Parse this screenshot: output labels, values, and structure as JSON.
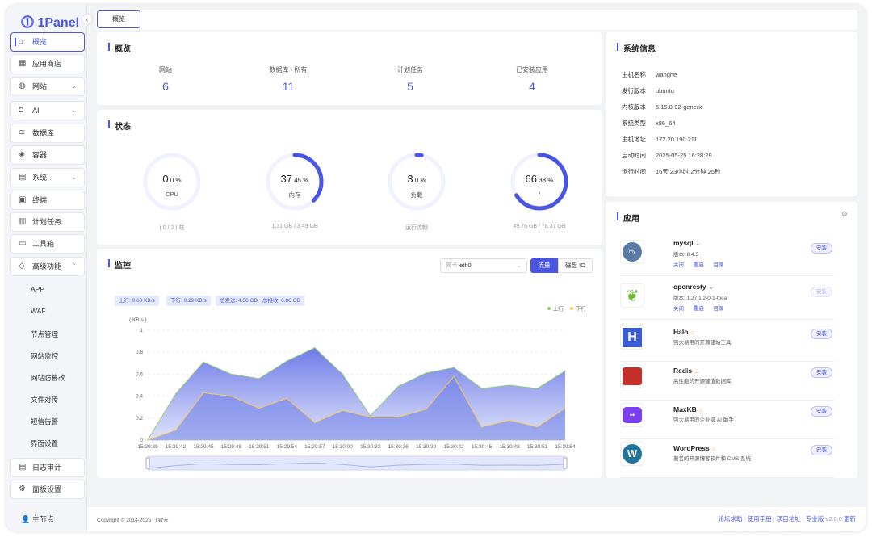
{
  "brand": "1Panel",
  "tabs": [
    {
      "label": "概览"
    }
  ],
  "sidebar": {
    "items": [
      {
        "label": "概览",
        "icon": "home-icon",
        "active": true
      },
      {
        "label": "应用商店",
        "icon": "grid-icon"
      },
      {
        "label": "网站",
        "icon": "globe-icon",
        "chevron": "down"
      },
      {
        "label": "AI",
        "icon": "robot-icon",
        "chevron": "down"
      },
      {
        "label": "数据库",
        "icon": "layers-icon"
      },
      {
        "label": "容器",
        "icon": "container-icon"
      },
      {
        "label": "系统",
        "icon": "server-icon",
        "chevron": "down"
      },
      {
        "label": "终端",
        "icon": "terminal-icon"
      },
      {
        "label": "计划任务",
        "icon": "calendar-icon"
      },
      {
        "label": "工具箱",
        "icon": "toolbox-icon"
      },
      {
        "label": "高级功能",
        "icon": "diamond-icon",
        "chevron": "up"
      }
    ],
    "sub_items": [
      "APP",
      "WAF",
      "节点管理",
      "网站监控",
      "网站防篡改",
      "文件对传",
      "短信告警",
      "界面设置"
    ],
    "bottom_items": [
      {
        "label": "日志审计",
        "icon": "log-icon"
      },
      {
        "label": "面板设置",
        "icon": "gear-icon"
      }
    ],
    "node": {
      "label": "主节点",
      "icon": "user-icon"
    }
  },
  "overview": {
    "title": "概览",
    "stats": [
      {
        "label": "网站",
        "value": "6"
      },
      {
        "label": "数据库 - 所有",
        "value": "11"
      },
      {
        "label": "计划任务",
        "value": "5"
      },
      {
        "label": "已安装应用",
        "value": "4"
      }
    ]
  },
  "status": {
    "title": "状态",
    "gauges": [
      {
        "int": "0",
        "dec": ".0 %",
        "label": "CPU",
        "caption": "( 0 / 2 ) 核",
        "percent": 0
      },
      {
        "int": "37",
        "dec": ".45 %",
        "label": "内存",
        "caption": "1.31 GB / 3.49 GB",
        "percent": 37.45
      },
      {
        "int": "3",
        "dec": ".0 %",
        "label": "负载",
        "caption": "运行流畅",
        "percent": 3
      },
      {
        "int": "66",
        "dec": ".38 %",
        "label": "/",
        "caption": "49.76 GB / 78.37 GB",
        "percent": 66.38
      }
    ]
  },
  "monitor": {
    "title": "监控",
    "nic_label": "网卡",
    "nic_value": "eth0",
    "btn_traffic": "流量",
    "btn_disk": "磁盘 IO",
    "tags": [
      "上行: 0.63 KB/s",
      "下行: 0.29 KB/s",
      "总发送: 4.58 GB",
      "总接收: 6.86 GB"
    ]
  },
  "chart_data": {
    "type": "area",
    "ylabel": "( KB/s )",
    "ylim": [
      0,
      1
    ],
    "yticks": [
      "0",
      "0.2",
      "0.4",
      "0.6",
      "0.8",
      "1"
    ],
    "grid": true,
    "legend": "top-right",
    "x": [
      "15:29:39",
      "15:29:42",
      "15:29:45",
      "15:29:48",
      "15:29:51",
      "15:29:54",
      "15:29:57",
      "15:30:00",
      "15:30:33",
      "15:30:36",
      "15:30:39",
      "15:30:42",
      "15:30:45",
      "15:30:48",
      "15:30:51",
      "15:30:54"
    ],
    "series": [
      {
        "name": "上行",
        "color": "#91cc75",
        "values": [
          0,
          0.42,
          0.71,
          0.6,
          0.56,
          0.72,
          0.84,
          0.6,
          0.22,
          0.49,
          0.61,
          0.66,
          0.47,
          0.5,
          0.47,
          0.63
        ]
      },
      {
        "name": "下行",
        "color": "#fac858",
        "values": [
          0,
          0.09,
          0.43,
          0.4,
          0.29,
          0.38,
          0.16,
          0.27,
          0.21,
          0.21,
          0.28,
          0.58,
          0.12,
          0.18,
          0.12,
          0.29
        ]
      }
    ]
  },
  "sysinfo": {
    "title": "系统信息",
    "rows": [
      {
        "k": "主机名称",
        "v": "wanghe"
      },
      {
        "k": "发行版本",
        "v": "ubuntu"
      },
      {
        "k": "内核版本",
        "v": "5.15.0-92-generic"
      },
      {
        "k": "系统类型",
        "v": "x86_64"
      },
      {
        "k": "主机地址",
        "v": "172.20.190.211"
      },
      {
        "k": "启动时间",
        "v": "2025-05-25 16:28:29"
      },
      {
        "k": "运行时间",
        "v": "16天 23小时 2分钟 25秒"
      }
    ]
  },
  "apps": {
    "title": "应用",
    "install": "安装",
    "items": [
      {
        "name": "mysql",
        "desc": "版本: 8.4.5",
        "actions": [
          "关闭",
          "重启",
          "目录"
        ]
      },
      {
        "name": "openresty",
        "desc": "版本: 1.27.1.2-0-1-focal",
        "actions": [
          "关闭",
          "重启",
          "目录"
        ]
      },
      {
        "name": "Halo",
        "desc": "强大易用的开源建站工具"
      },
      {
        "name": "Redis",
        "desc": "高性能的开源键值数据库"
      },
      {
        "name": "MaxKB",
        "desc": "强大易用的企业级 AI 助手"
      },
      {
        "name": "WordPress",
        "desc": "著名的开源博客软件和 CMS 系统"
      }
    ]
  },
  "footer": {
    "copyright": "Copyright © 2014-2025 飞致云",
    "links": [
      "论坛求助",
      "使用手册",
      "项目地址",
      "专业版"
    ],
    "version": "v2.0.0",
    "update": "更新"
  },
  "colors": {
    "accent": "#4a56e2"
  }
}
